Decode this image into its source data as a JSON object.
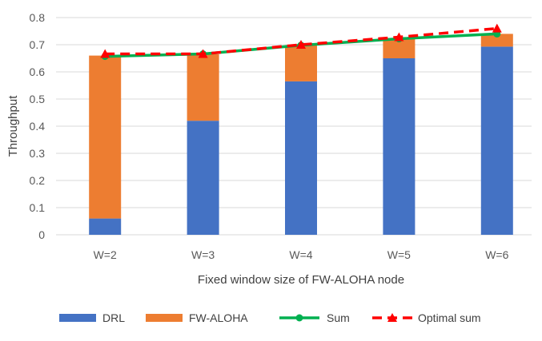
{
  "chart_data": {
    "type": "bar",
    "stacked": true,
    "title": "",
    "xlabel": "Fixed window size of FW-ALOHA node",
    "ylabel": "Throughput",
    "ylim": [
      0,
      0.8
    ],
    "yticks": [
      "0",
      "0.1",
      "0.2",
      "0.3",
      "0.4",
      "0.5",
      "0.6",
      "0.7",
      "0.8"
    ],
    "categories": [
      "W=2",
      "W=3",
      "W=4",
      "W=5",
      "W=6"
    ],
    "series": [
      {
        "name": "DRL",
        "kind": "bar",
        "color": "#4472C4",
        "values": [
          0.06,
          0.42,
          0.565,
          0.65,
          0.693
        ]
      },
      {
        "name": "FW-ALOHA",
        "kind": "bar",
        "color": "#ED7D31",
        "values": [
          0.6,
          0.245,
          0.133,
          0.072,
          0.047
        ]
      },
      {
        "name": "Sum",
        "kind": "line",
        "color": "#00B050",
        "marker": "circle",
        "values": [
          0.657,
          0.666,
          0.698,
          0.722,
          0.74
        ]
      },
      {
        "name": "Optimal sum",
        "kind": "line",
        "style": "dashed",
        "color": "#FF0000",
        "marker": "triangle",
        "values": [
          0.666,
          0.666,
          0.7,
          0.728,
          0.76
        ]
      }
    ],
    "grid": "horizontal",
    "legend_position": "bottom"
  }
}
